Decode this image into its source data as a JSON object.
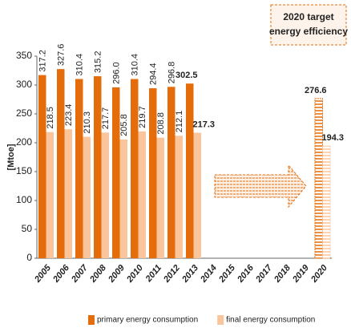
{
  "chart_data": {
    "type": "bar",
    "annotation": [
      "2020 target",
      "energy efficiency"
    ],
    "y_label": "[Mtoe]",
    "categories": [
      "2005",
      "2006",
      "2007",
      "2008",
      "2009",
      "2010",
      "2011",
      "2012",
      "2013",
      "2014",
      "2015",
      "2016",
      "2017",
      "2018",
      "2019",
      "2020"
    ],
    "series": [
      {
        "name": "primary energy consumption",
        "color": "#e46c0a",
        "values": [
          317.2,
          327.6,
          310.4,
          315.2,
          296.0,
          310.4,
          294.4,
          296.8,
          302.5,
          null,
          null,
          null,
          null,
          null,
          null,
          276.6
        ],
        "value_labels": [
          "317.2",
          "327.6",
          "310.4",
          "315.2",
          "296.0",
          "310.4",
          "294.4",
          "296.8",
          "302.5",
          null,
          null,
          null,
          null,
          null,
          null,
          "276.6"
        ]
      },
      {
        "name": "final energy consumption",
        "color": "#fbc59b",
        "values": [
          218.5,
          223.4,
          210.3,
          217.7,
          205.8,
          219.7,
          208.8,
          212.1,
          217.3,
          null,
          null,
          null,
          null,
          null,
          null,
          194.3
        ],
        "value_labels": [
          "218.5",
          "223.4",
          "210.3",
          "217.7",
          "205.8",
          "219.7",
          "208.8",
          "212.1",
          "217.3",
          null,
          null,
          null,
          null,
          null,
          null,
          "194.3"
        ]
      }
    ],
    "ylim": [
      0,
      350
    ],
    "yticks": [
      0,
      50,
      100,
      150,
      200,
      250,
      300,
      350
    ],
    "grid": false,
    "legend": "bottom"
  }
}
